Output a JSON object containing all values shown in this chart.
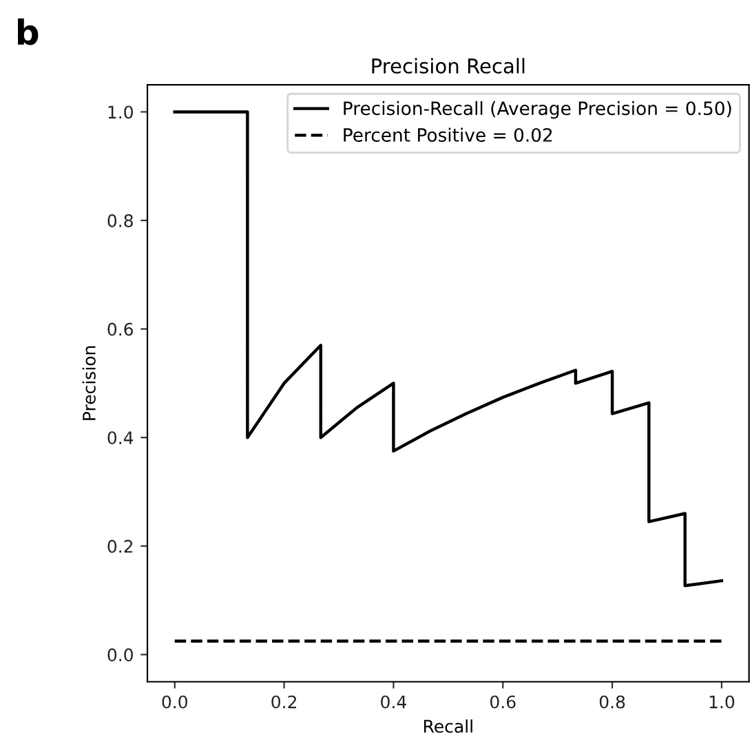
{
  "chart_data": {
    "type": "line",
    "title": "Precision Recall",
    "xlabel": "Recall",
    "ylabel": "Precision",
    "annotations": [
      "b"
    ],
    "xlim": [
      -0.05,
      1.05
    ],
    "ylim": [
      -0.05,
      1.05
    ],
    "xticks": [
      {
        "value": 0,
        "label": "0.0"
      },
      0.2,
      0.4,
      0.6,
      0.8,
      {
        "value": 1,
        "label": "1.0"
      }
    ],
    "yticks": [
      {
        "value": 0,
        "label": "0.0"
      },
      0.2,
      0.4,
      0.6,
      0.8,
      {
        "value": 1,
        "label": "1.0"
      }
    ],
    "grid": false,
    "legend": "top right",
    "series": [
      {
        "name": "Precision-Recall (Average Precision = 0.50)",
        "color": "#000000",
        "line_style": "solid",
        "x": [
          0,
          0.133,
          0.133,
          0.2,
          0.267,
          0.267,
          0.333,
          0.4,
          0.4,
          0.467,
          0.533,
          0.6,
          0.667,
          0.733,
          0.733,
          0.8,
          0.8,
          0.867,
          0.867,
          0.933,
          0.933,
          1.0
        ],
        "values": [
          1.0,
          1.0,
          0.4,
          0.5,
          0.57,
          0.4,
          0.455,
          0.5,
          0.375,
          0.412,
          0.444,
          0.474,
          0.5,
          0.524,
          0.5,
          0.522,
          0.444,
          0.464,
          0.245,
          0.26,
          0.127,
          0.136
        ]
      },
      {
        "name": "Percent Positive = 0.02",
        "color": "#000000",
        "line_style": "dashed",
        "x": [
          0,
          1.0
        ],
        "values": [
          0.025,
          0.025
        ]
      }
    ]
  }
}
